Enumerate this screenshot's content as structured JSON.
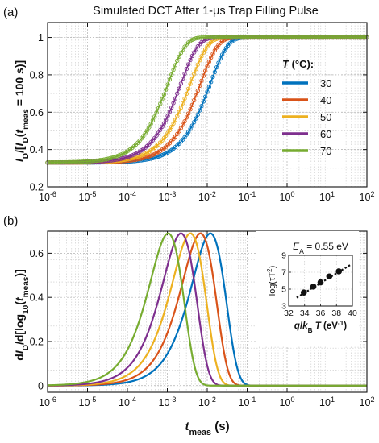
{
  "figure_title": "Simulated DCT After 1-μs Trap Filling Pulse",
  "panels": [
    {
      "label": "(a)"
    },
    {
      "label": "(b)"
    }
  ],
  "colors": {
    "30": "#0072BD",
    "40": "#D95319",
    "50": "#EDB120",
    "60": "#7E2F8E",
    "70": "#77AC30"
  },
  "chart_data": [
    {
      "type": "line",
      "panel": "(a)",
      "title": "Simulated DCT After 1-μs Trap Filling Pulse",
      "xlabel": "",
      "ylabel": "I_D/[I_D(t_meas = 100 s)]",
      "xscale": "log",
      "xlim": [
        1e-06,
        100
      ],
      "ylim": [
        0.2,
        1.08
      ],
      "xticks": [
        "10-6",
        "10-5",
        "10-4",
        "10-3",
        "10-2",
        "10-1",
        "100",
        "101",
        "102"
      ],
      "yticks": [
        "0.2",
        "0.4",
        "0.6",
        "0.8",
        "1"
      ],
      "grid": true,
      "legend": {
        "title": "T (°C):",
        "placement": "right",
        "entries": [
          "30",
          "40",
          "50",
          "60",
          "70"
        ]
      },
      "curve_model": "y = 0.33 + 0.67*(1 - exp(-t/tau))",
      "series": [
        {
          "name": "30",
          "tau": 0.012
        },
        {
          "name": "40",
          "tau": 0.0068
        },
        {
          "name": "50",
          "tau": 0.0038
        },
        {
          "name": "60",
          "tau": 0.0022
        },
        {
          "name": "70",
          "tau": 0.00105
        }
      ]
    },
    {
      "type": "line",
      "panel": "(b)",
      "xlabel": "t_meas (s)",
      "ylabel": "dI_D/d[log10(t_meas)]",
      "xscale": "log",
      "xlim": [
        1e-06,
        100
      ],
      "ylim": [
        -0.03,
        0.7
      ],
      "xticks": [
        "10-6",
        "10-5",
        "10-4",
        "10-3",
        "10-2",
        "10-1",
        "100",
        "101",
        "102"
      ],
      "yticks": [
        "0",
        "0.2",
        "0.4",
        "0.6"
      ],
      "grid": true,
      "curve_model": "y = 0.69 * (t/tau) * exp(1 - t/tau)",
      "series": [
        {
          "name": "30",
          "tau": 0.012
        },
        {
          "name": "40",
          "tau": 0.0068
        },
        {
          "name": "50",
          "tau": 0.0038
        },
        {
          "name": "60",
          "tau": 0.0022
        },
        {
          "name": "70",
          "tau": 0.00105
        }
      ],
      "inset": {
        "type": "scatter",
        "annotation": "E_A = 0.55 eV",
        "xlabel": "q/k_B T (eV^-1)",
        "ylabel": "log(τT^2)",
        "xlim": [
          32,
          40
        ],
        "ylim": [
          3,
          9
        ],
        "xticks": [
          "32",
          "34",
          "36",
          "38",
          "40"
        ],
        "yticks": [
          "3",
          "5",
          "7",
          "9"
        ],
        "points": [
          {
            "x": 33.9,
            "y": 4.6
          },
          {
            "x": 35.1,
            "y": 5.3
          },
          {
            "x": 36.0,
            "y": 5.8
          },
          {
            "x": 37.1,
            "y": 6.5
          },
          {
            "x": 38.3,
            "y": 7.1
          }
        ],
        "fit_line": {
          "x": [
            33.0,
            39.8
          ],
          "y": [
            4.0,
            7.9
          ]
        }
      }
    }
  ]
}
